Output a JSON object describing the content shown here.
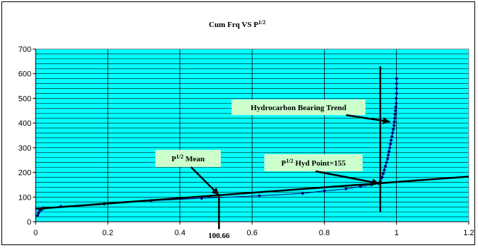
{
  "chart_data": {
    "type": "scatter",
    "title": {
      "main": "Cum Frq VS P",
      "sup": "1/2"
    },
    "xlim": [
      0,
      1.2
    ],
    "ylim": [
      0,
      700
    ],
    "x_ticks": [
      {
        "value": 0,
        "label": "0"
      },
      {
        "value": 0.2,
        "label": "0.2"
      },
      {
        "value": 0.4,
        "label": "0.4"
      },
      {
        "value": 0.6,
        "label": "0.6"
      },
      {
        "value": 0.8,
        "label": "0.8"
      },
      {
        "value": 1,
        "label": "1"
      },
      {
        "value": 1.2,
        "label": "1.2"
      }
    ],
    "y_ticks": [
      {
        "value": 0,
        "label": "0"
      },
      {
        "value": 100,
        "label": "100"
      },
      {
        "value": 200,
        "label": "200"
      },
      {
        "value": 300,
        "label": "300"
      },
      {
        "value": 400,
        "label": "400"
      },
      {
        "value": 500,
        "label": "500"
      },
      {
        "value": 600,
        "label": "600"
      },
      {
        "value": 700,
        "label": "700"
      }
    ],
    "minor_grid_step": 20,
    "colors": {
      "plot_background": "#00ffff",
      "grid": "#000000",
      "series": "#000080",
      "trend_line": "#000000",
      "label_box": "#ccffcc"
    },
    "series": [
      {
        "x": [
          0.005,
          0.008,
          0.012,
          0.017,
          0.022,
          0.07,
          0.19,
          0.32,
          0.46,
          0.62,
          0.74,
          0.8,
          0.86,
          0.9,
          0.93,
          0.95,
          0.955,
          0.96,
          0.963,
          0.966,
          0.969,
          0.972,
          0.975,
          0.977,
          0.979,
          0.981,
          0.983,
          0.985,
          0.987,
          0.989,
          0.991,
          0.993,
          0.994,
          0.995,
          0.996,
          0.997,
          0.998,
          0.999,
          0.999,
          1.0,
          1.0,
          1.0,
          1.0
        ],
        "y": [
          25,
          35,
          45,
          50,
          55,
          62,
          72,
          85,
          95,
          105,
          115,
          125,
          133,
          143,
          150,
          155,
          165,
          180,
          195,
          210,
          225,
          240,
          255,
          270,
          285,
          300,
          315,
          330,
          345,
          360,
          375,
          390,
          405,
          420,
          435,
          450,
          465,
          480,
          500,
          520,
          540,
          560,
          580
        ]
      }
    ],
    "trend_line": {
      "x": [
        0,
        1.2
      ],
      "y": [
        52,
        183
      ]
    },
    "vertical_lines": [
      {
        "name": "p-mean-line",
        "x": 0.508,
        "y_range": [
          -30,
          110
        ]
      },
      {
        "name": "hyd-point-line",
        "x": 0.955,
        "y_range": [
          40,
          630
        ]
      }
    ],
    "annotations": [
      {
        "name": "hydrocarbon-bearing-trend",
        "text": "Hydrocarbon Bearing Trend",
        "sup": "",
        "arrow_to": [
          0.982,
          405
        ]
      },
      {
        "name": "p-mean",
        "text": "Mean",
        "sup": "1/2",
        "arrow_to": [
          0.508,
          108
        ]
      },
      {
        "name": "hyd-point",
        "text": " Hyd Point=155",
        "sup": "1/2",
        "arrow_to": [
          0.952,
          155
        ]
      }
    ],
    "value_label": "100.66"
  }
}
